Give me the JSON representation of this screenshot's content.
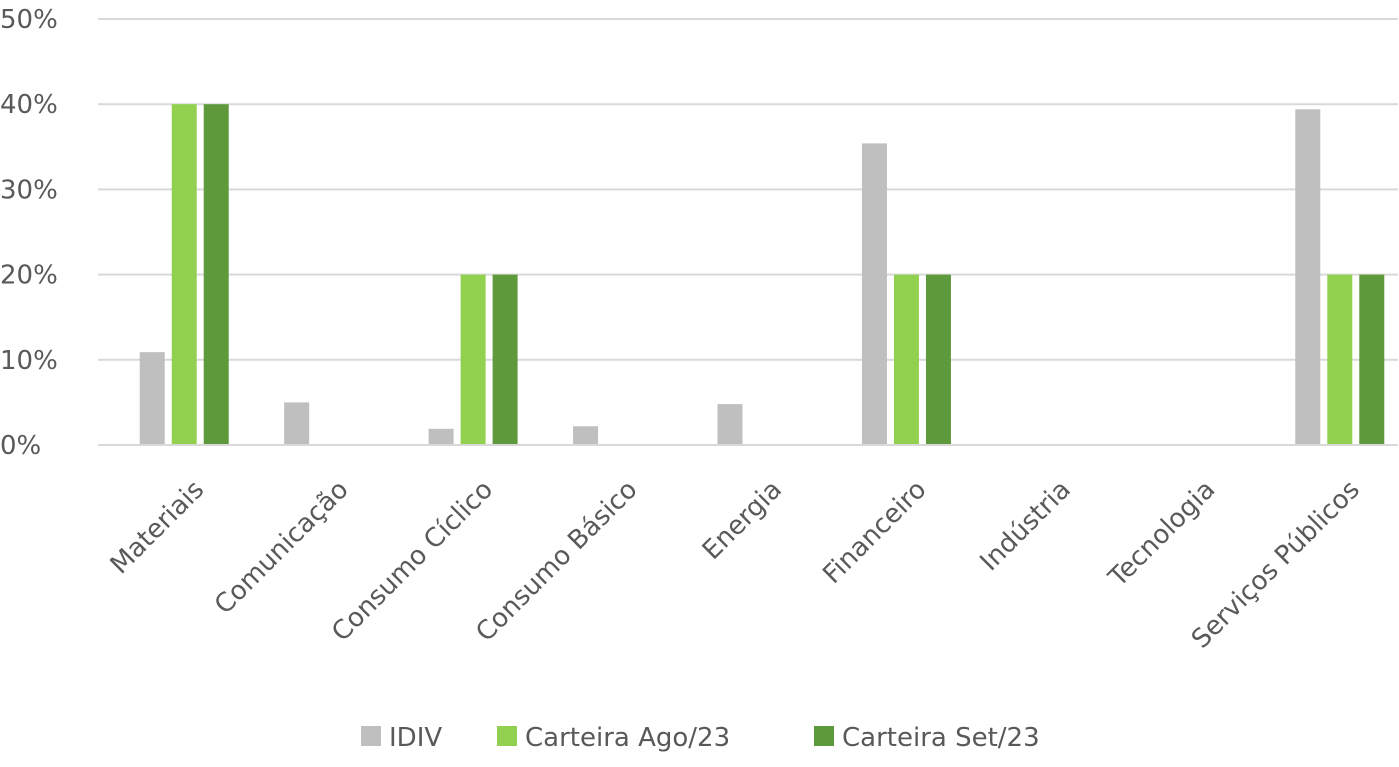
{
  "chart_data": {
    "type": "bar",
    "title": "",
    "xlabel": "",
    "ylabel": "",
    "categories": [
      "Materiais",
      "Comunicação",
      "Consumo Cíclico",
      "Consumo Básico",
      "Energia",
      "Financeiro",
      "Indústria",
      "Tecnologia",
      "Serviços Públicos"
    ],
    "series": [
      {
        "name": "IDIV",
        "color": "#bfbfbf",
        "values": [
          10.9,
          5.0,
          1.9,
          2.2,
          4.8,
          35.4,
          0,
          0,
          39.4
        ]
      },
      {
        "name": "Carteira Ago/23",
        "color": "#92d050",
        "values": [
          40,
          0,
          20,
          0,
          0,
          20,
          0,
          0,
          20
        ]
      },
      {
        "name": "Carteira Set/23",
        "color": "#5e993b",
        "values": [
          40,
          0,
          20,
          0,
          0,
          20,
          0,
          0,
          20
        ]
      }
    ],
    "ylim": [
      0,
      50
    ],
    "yticks": [
      "0%",
      "10%",
      "20%",
      "30%",
      "40%",
      "50%"
    ],
    "grid": true,
    "legend_position": "bottom"
  },
  "colors": {
    "gridline": "#d9d9d9",
    "axis_text": "#595959"
  }
}
